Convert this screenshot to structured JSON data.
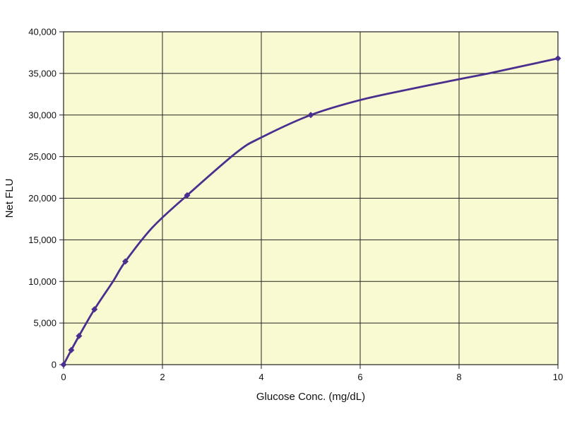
{
  "chart_data": {
    "type": "line",
    "title": "",
    "xlabel": "Glucose Conc. (mg/dL)",
    "ylabel": "Net FLU",
    "xlim": [
      0,
      10
    ],
    "ylim": [
      0,
      40000
    ],
    "x_ticks": [
      0,
      2,
      4,
      6,
      8,
      10
    ],
    "x_tick_labels": [
      "0",
      "2",
      "4",
      "6",
      "8",
      "10"
    ],
    "y_ticks": [
      0,
      5000,
      10000,
      15000,
      20000,
      25000,
      30000,
      35000,
      40000
    ],
    "y_tick_labels": [
      "0",
      "5,000",
      "10,000",
      "15,000",
      "20,000",
      "25,000",
      "30,000",
      "35,000",
      "40,000"
    ],
    "grid": true,
    "legend": "none",
    "series": [
      {
        "x": [
          0,
          0.156,
          0.3125,
          0.625,
          1.25,
          2.5,
          5,
          10
        ],
        "values": [
          0,
          1750,
          3450,
          6650,
          12400,
          20350,
          30000,
          36800
        ],
        "curve_x": [
          0,
          0.156,
          0.3125,
          0.625,
          1.0,
          1.25,
          1.8,
          2.5,
          3.5,
          4.0,
          5.0,
          6.0,
          7.0,
          8.0,
          8.6,
          9.3,
          10.0
        ],
        "curve_y": [
          0,
          1750,
          3450,
          6650,
          10000,
          12400,
          16500,
          20350,
          25500,
          27300,
          30000,
          31800,
          33100,
          34300,
          35000,
          35900,
          36800
        ]
      }
    ],
    "colors": {
      "line": "#4a2f8f",
      "marker": "#4a2f8f",
      "plot_background": "#fafad2",
      "grid": "#222222"
    }
  }
}
